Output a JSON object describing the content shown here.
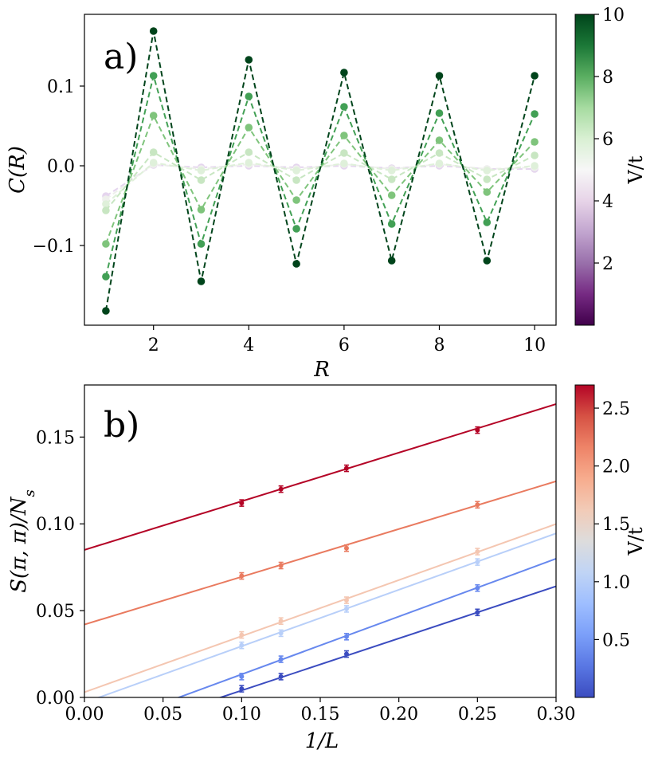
{
  "chart_data": [
    {
      "type": "line",
      "panel_label": "a)",
      "xlabel": "R",
      "ylabel": "C(R)",
      "xlim": [
        0.55,
        10.45
      ],
      "ylim": [
        -0.2,
        0.19
      ],
      "xticks": [
        2,
        4,
        6,
        8,
        10
      ],
      "yticks": [
        -0.1,
        0.0,
        0.1
      ],
      "ytick_labels": [
        "−0.1",
        "0.0",
        "0.1"
      ],
      "x": [
        1,
        2,
        3,
        4,
        5,
        6,
        7,
        8,
        9,
        10
      ],
      "colormap": "Greens",
      "colorbar": {
        "label": "V/t",
        "range": [
          0,
          10
        ],
        "ticks": [
          2,
          4,
          6,
          8,
          10
        ],
        "colors": [
          "#40004b",
          "#762a83",
          "#9970ab",
          "#c2a5cf",
          "#e7d4e8",
          "#f7f7f7",
          "#d9f0d3",
          "#a6dba0",
          "#5aae61",
          "#1b7837",
          "#00441b"
        ]
      },
      "series": [
        {
          "name": "V/t=4",
          "color": "#e5d5ee",
          "values": [
            -0.038,
            0.001,
            -0.002,
            0.0,
            -0.002,
            0.0,
            -0.003,
            0.0,
            -0.004,
            -0.004
          ]
        },
        {
          "name": "V/t=5",
          "color": "#eef0ec",
          "values": [
            -0.042,
            0.002,
            -0.004,
            0.002,
            -0.004,
            0.002,
            -0.004,
            0.002,
            -0.004,
            -0.002
          ]
        },
        {
          "name": "V/t=5.5",
          "color": "#dff0da",
          "values": [
            -0.048,
            0.004,
            -0.006,
            0.004,
            -0.006,
            0.003,
            -0.006,
            0.003,
            -0.006,
            0.0
          ]
        },
        {
          "name": "V/t=6",
          "color": "#c8e6c2",
          "values": [
            -0.056,
            0.017,
            -0.018,
            0.017,
            -0.018,
            0.016,
            -0.017,
            0.016,
            -0.017,
            0.013
          ]
        },
        {
          "name": "V/t=7",
          "color": "#7fc47c",
          "values": [
            -0.098,
            0.063,
            -0.055,
            0.048,
            -0.043,
            0.038,
            -0.037,
            0.032,
            -0.033,
            0.03
          ]
        },
        {
          "name": "V/t=8",
          "color": "#42a055",
          "values": [
            -0.139,
            0.113,
            -0.098,
            0.087,
            -0.079,
            0.074,
            -0.073,
            0.066,
            -0.071,
            0.065
          ]
        },
        {
          "name": "V/t=10",
          "color": "#00441b",
          "values": [
            -0.182,
            0.169,
            -0.145,
            0.133,
            -0.123,
            0.117,
            -0.119,
            0.113,
            -0.119,
            0.113
          ]
        }
      ]
    },
    {
      "type": "scatter",
      "panel_label": "b)",
      "xlabel": "1/L",
      "ylabel": "S(π, π)/N_s",
      "xlim": [
        0.0,
        0.3
      ],
      "ylim": [
        0.0,
        0.18
      ],
      "xticks": [
        0.0,
        0.05,
        0.1,
        0.15,
        0.2,
        0.25,
        0.3
      ],
      "xtick_labels": [
        "0.00",
        "0.05",
        "0.10",
        "0.15",
        "0.20",
        "0.25",
        "0.30"
      ],
      "yticks": [
        0.0,
        0.05,
        0.1,
        0.15
      ],
      "ytick_labels": [
        "0.00",
        "0.05",
        "0.10",
        "0.15"
      ],
      "colormap": "coolwarm",
      "colorbar": {
        "label": "V/t",
        "range": [
          0.0,
          2.7
        ],
        "ticks": [
          0.5,
          1.0,
          1.5,
          2.0,
          2.5
        ],
        "tick_labels": [
          "0.5",
          "1.0",
          "1.5",
          "2.0",
          "2.5"
        ],
        "colors": [
          "#3b4cc0",
          "#5977e3",
          "#7b9ff9",
          "#9ebeff",
          "#c0d4f5",
          "#dddcdc",
          "#f2cbb7",
          "#f7ac8e",
          "#ee8468",
          "#d65244",
          "#b40426"
        ]
      },
      "series": [
        {
          "name": "V/t=0.25",
          "color": "#3b4cc0",
          "x": [
            0.1,
            0.125,
            0.1667,
            0.25
          ],
          "values": [
            0.005,
            0.012,
            0.025,
            0.049
          ],
          "fit": {
            "intercept": -0.026,
            "slope": 0.3
          }
        },
        {
          "name": "V/t=0.7",
          "color": "#6788ee",
          "x": [
            0.1,
            0.125,
            0.1667,
            0.25
          ],
          "values": [
            0.012,
            0.022,
            0.035,
            0.063
          ],
          "fit": {
            "intercept": -0.02,
            "slope": 0.333
          }
        },
        {
          "name": "V/t=1.25",
          "color": "#b8cff9",
          "x": [
            0.1,
            0.125,
            0.1667,
            0.25
          ],
          "values": [
            0.03,
            0.037,
            0.051,
            0.078
          ],
          "fit": {
            "intercept": -0.003,
            "slope": 0.325
          }
        },
        {
          "name": "V/t=1.65",
          "color": "#f4c6b1",
          "x": [
            0.1,
            0.125,
            0.1667,
            0.25
          ],
          "values": [
            0.036,
            0.044,
            0.056,
            0.084
          ],
          "fit": {
            "intercept": 0.003,
            "slope": 0.323
          }
        },
        {
          "name": "V/t=2.0",
          "color": "#e97a5f",
          "x": [
            0.1,
            0.125,
            0.1667,
            0.25
          ],
          "values": [
            0.07,
            0.076,
            0.086,
            0.111
          ],
          "fit": {
            "intercept": 0.042,
            "slope": 0.275
          }
        },
        {
          "name": "V/t=2.6",
          "color": "#b40426",
          "x": [
            0.1,
            0.125,
            0.1667,
            0.25
          ],
          "values": [
            0.112,
            0.12,
            0.132,
            0.154
          ],
          "fit": {
            "intercept": 0.085,
            "slope": 0.28
          }
        }
      ]
    }
  ]
}
